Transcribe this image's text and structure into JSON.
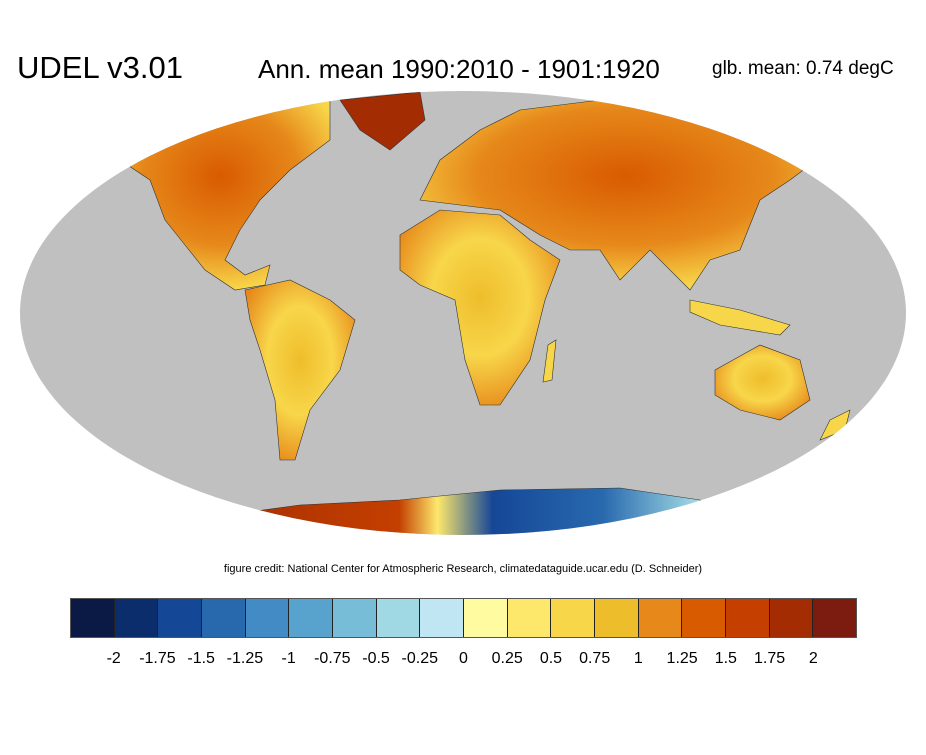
{
  "title": {
    "dataset": "UDEL v3.01",
    "description": "Ann. mean 1990:2010 - 1901:1920",
    "global_mean": "glb. mean: 0.74 degC"
  },
  "credit": "figure credit: National Center for Atmospheric Research, climatedataguide.ucar.edu (D. Schneider)",
  "colorbar": {
    "colors": [
      "#0a1a45",
      "#0c2d6c",
      "#154797",
      "#2869ae",
      "#428bc4",
      "#58a3cd",
      "#77bdd8",
      "#a0d8e3",
      "#c0e6f3",
      "#fffba0",
      "#fde86c",
      "#f8d64a",
      "#eebd2b",
      "#e6881a",
      "#d95b00",
      "#c43f00",
      "#a32c02",
      "#7c1c10"
    ],
    "labels": [
      "-2",
      "-1.75",
      "-1.5",
      "-1.25",
      "-1",
      "-0.75",
      "-0.5",
      "-0.25",
      "0",
      "0.25",
      "0.5",
      "0.75",
      "1",
      "1.25",
      "1.5",
      "1.75",
      "2"
    ]
  },
  "map": {
    "ocean_color": "#c0c0c0"
  }
}
